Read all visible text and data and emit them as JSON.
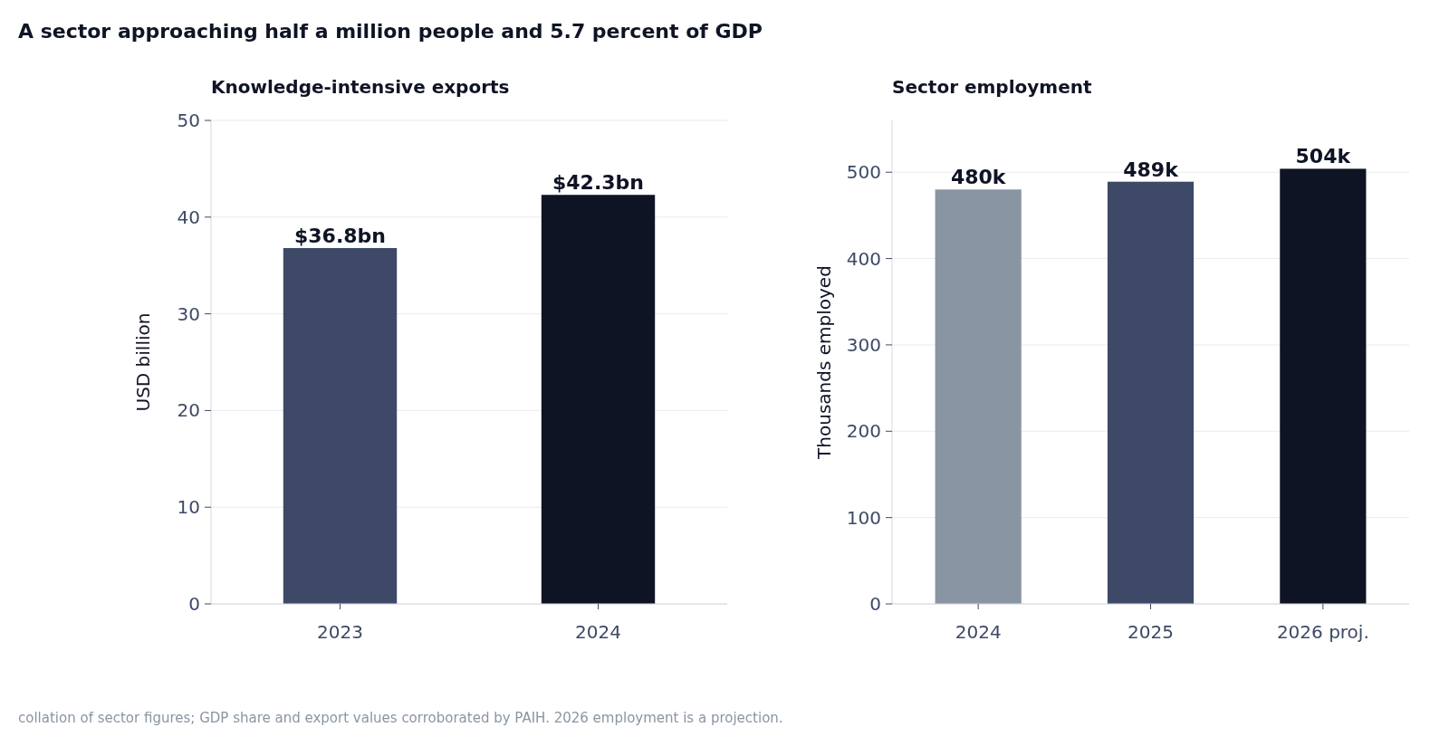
{
  "chart_data": [
    {
      "type": "bar",
      "title": "A sector approaching half a million people and 5.7 percent of GDP",
      "subtitle": "Knowledge-intensive exports",
      "ylabel": "USD billion",
      "categories": [
        "2023",
        "2024"
      ],
      "values": [
        36.8,
        42.3
      ],
      "colors": [
        "#3d4966",
        "#0f1425"
      ],
      "value_labels": [
        "$36.8bn",
        "$42.3bn"
      ],
      "ylim": [
        0,
        50
      ],
      "yticks": [
        0,
        10,
        20,
        30,
        40,
        50
      ],
      "grid": "y"
    },
    {
      "type": "bar",
      "title": "Sector employment",
      "ylabel": "Thousands employed",
      "categories": [
        "2024",
        "2025",
        "2026 proj."
      ],
      "values": [
        480,
        489,
        504
      ],
      "colors": [
        "#8a95a3",
        "#3d4966",
        "#0f1425"
      ],
      "value_labels": [
        "480k",
        "489k",
        "504k"
      ],
      "ylim": [
        0,
        560
      ],
      "yticks": [
        0,
        100,
        200,
        300,
        400,
        500
      ],
      "grid": "y",
      "annotations": [
        "collation of sector figures; GDP share and export values corroborated by PAIH. 2026 employment is a projection."
      ]
    }
  ]
}
